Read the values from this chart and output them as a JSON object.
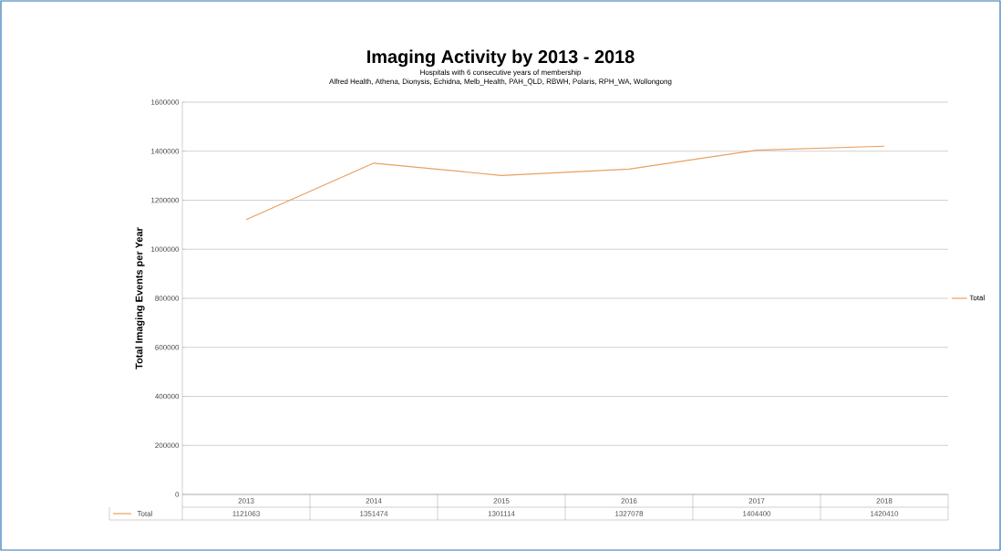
{
  "chart_data": {
    "type": "line",
    "title": "Imaging Activity by 2013 - 2018",
    "subtitle": "Hospitals with 6 consecutive years of membership\nAlfred Health, Athena, Dionysis, Echidna, Melb_Health, PAH_QLD, RBWH, Polaris, RPH_WA, Wollongong",
    "ylabel": "Total Imaging Events per Year",
    "categories": [
      "2013",
      "2014",
      "2015",
      "2016",
      "2017",
      "2018"
    ],
    "series": [
      {
        "name": "Total",
        "color": "#e8a060",
        "values": [
          1121063,
          1351474,
          1301114,
          1327078,
          1404400,
          1420410
        ]
      }
    ],
    "ylim": [
      0,
      1600000
    ],
    "yticks": [
      0,
      200000,
      400000,
      600000,
      800000,
      1000000,
      1200000,
      1400000,
      1600000
    ],
    "grid": "y",
    "legend": "right",
    "data_labels": true
  }
}
